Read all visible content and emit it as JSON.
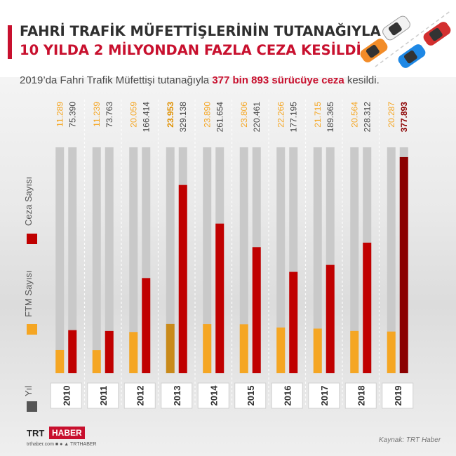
{
  "header": {
    "title_line1": "FAHRİ TRAFİK MÜFETTİŞLERİNİN TUTANAĞIYLA",
    "title_line2": "10 YILDA 2 MİLYONDAN FAZLA CEZA KESİLDİ"
  },
  "subtitle": {
    "prefix": "2019’da Fahri Trafik Müfettişi tutanağıyla ",
    "highlight": "377 bin 893 sürücüye ceza",
    "suffix": " kesildi."
  },
  "legend": {
    "ceza": "Ceza Sayısı",
    "ftm": "FTM Sayısı",
    "yil": "Yıl"
  },
  "colors": {
    "ceza": "#c00000",
    "ceza_highlight": "#8b0000",
    "ftm": "#f5a623",
    "ftm_highlight": "#c98a1a",
    "track": "#c9c9c9",
    "year_box": "#ffffff"
  },
  "chart_data": {
    "type": "bar",
    "categories": [
      "2010",
      "2011",
      "2012",
      "2013",
      "2014",
      "2015",
      "2016",
      "2017",
      "2018",
      "2019"
    ],
    "series": [
      {
        "name": "FTM Sayısı",
        "values": [
          11289,
          11239,
          20059,
          23953,
          23890,
          23806,
          22266,
          21715,
          20564,
          20287
        ],
        "labels": [
          "11.289",
          "11.239",
          "20.059",
          "23.953",
          "23.890",
          "23.806",
          "22.266",
          "21.715",
          "20.564",
          "20.287"
        ]
      },
      {
        "name": "Ceza Sayısı",
        "values": [
          75390,
          73763,
          166414,
          329138,
          261654,
          220461,
          177195,
          189365,
          228312,
          377893
        ],
        "labels": [
          "75.390",
          "73.763",
          "166.414",
          "329.138",
          "261.654",
          "220.461",
          "177.195",
          "189.365",
          "228.312",
          "377.893"
        ]
      }
    ],
    "highlight": {
      "ftm_year": "2013",
      "ceza_year": "2019"
    }
  },
  "footer": {
    "logo_trt": "TRT",
    "logo_haber": "HABER",
    "site": "trthaber.com",
    "handle": "TRTHABER",
    "source": "Kaynak: TRT Haber"
  }
}
